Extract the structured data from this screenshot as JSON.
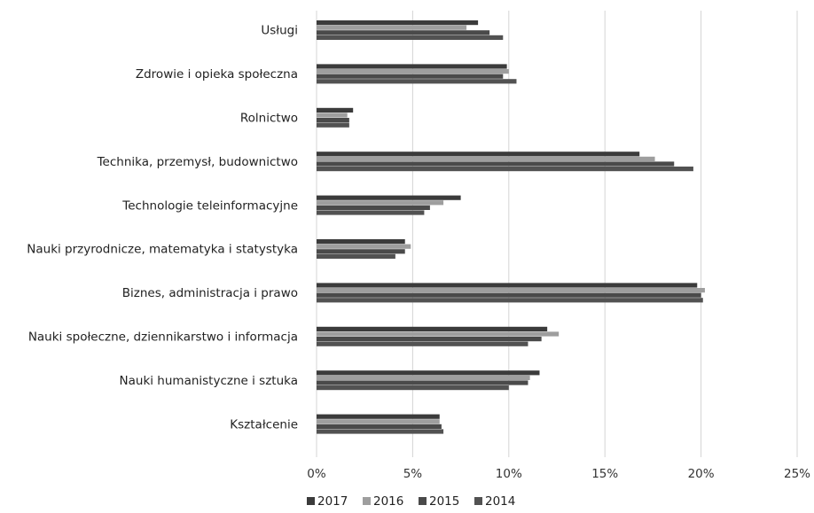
{
  "chart_data": {
    "type": "bar",
    "orientation": "horizontal",
    "title": "",
    "xlabel": "",
    "ylabel": "",
    "xlim": [
      0,
      25
    ],
    "x_ticks": [
      "0%",
      "5%",
      "10%",
      "15%",
      "20%",
      "25%"
    ],
    "grid": true,
    "legend_position": "bottom",
    "categories": [
      "Usługi",
      "Zdrowie i opieka społeczna",
      "Rolnictwo",
      "Technika, przemysł, budownictwo",
      "Technologie teleinformacyjne",
      "Nauki przyrodnicze, matematyka i statystyka",
      "Biznes, administracja i prawo",
      "Nauki społeczne, dziennikarstwo i informacja",
      "Nauki humanistyczne i sztuka",
      "Kształcenie"
    ],
    "series": [
      {
        "name": "2017",
        "color": "#3b3b3b",
        "values": [
          8.4,
          9.9,
          1.9,
          16.8,
          7.5,
          4.6,
          19.8,
          12.0,
          11.6,
          6.4
        ]
      },
      {
        "name": "2016",
        "color": "#9e9e9e",
        "values": [
          7.8,
          10.0,
          1.6,
          17.6,
          6.6,
          4.9,
          20.2,
          12.6,
          11.1,
          6.4
        ]
      },
      {
        "name": "2015",
        "color": "#4a4a4a",
        "values": [
          9.0,
          9.7,
          1.7,
          18.6,
          5.9,
          4.6,
          20.0,
          11.7,
          11.0,
          6.5
        ]
      },
      {
        "name": "2014",
        "color": "#525252",
        "values": [
          9.7,
          10.4,
          1.7,
          19.6,
          5.6,
          4.1,
          20.1,
          11.0,
          10.0,
          6.6
        ]
      }
    ]
  }
}
